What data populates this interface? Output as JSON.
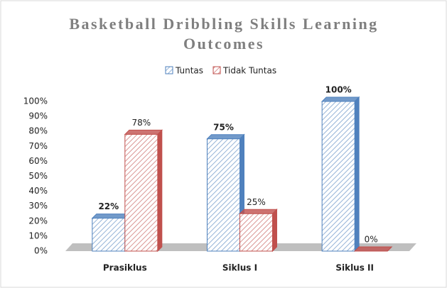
{
  "chart_data": {
    "type": "bar3d",
    "title": "Basketball Dribbling Skills Learning Outcomes",
    "categories": [
      "Prasiklus",
      "Siklus I",
      "Siklus II"
    ],
    "series": [
      {
        "name": "Tuntas",
        "color": "#4f81bd",
        "values": [
          22,
          75,
          100
        ],
        "value_labels": [
          "22%",
          "75%",
          "100%"
        ]
      },
      {
        "name": "Tidak Tuntas",
        "color": "#c0504d",
        "values": [
          78,
          25,
          0
        ],
        "value_labels": [
          "78%",
          "25%",
          "0%"
        ]
      }
    ],
    "ylim": [
      0,
      100
    ],
    "yticks": [
      {
        "value": 0,
        "label": "0%"
      },
      {
        "value": 10,
        "label": "10%"
      },
      {
        "value": 20,
        "label": "20%"
      },
      {
        "value": 30,
        "label": "30%"
      },
      {
        "value": 40,
        "label": "40%"
      },
      {
        "value": 50,
        "label": "50%"
      },
      {
        "value": 60,
        "label": "60%"
      },
      {
        "value": 70,
        "label": "70%"
      },
      {
        "value": 80,
        "label": "80%"
      },
      {
        "value": 90,
        "label": "90%"
      },
      {
        "value": 100,
        "label": "100%"
      }
    ],
    "legend": "top"
  }
}
